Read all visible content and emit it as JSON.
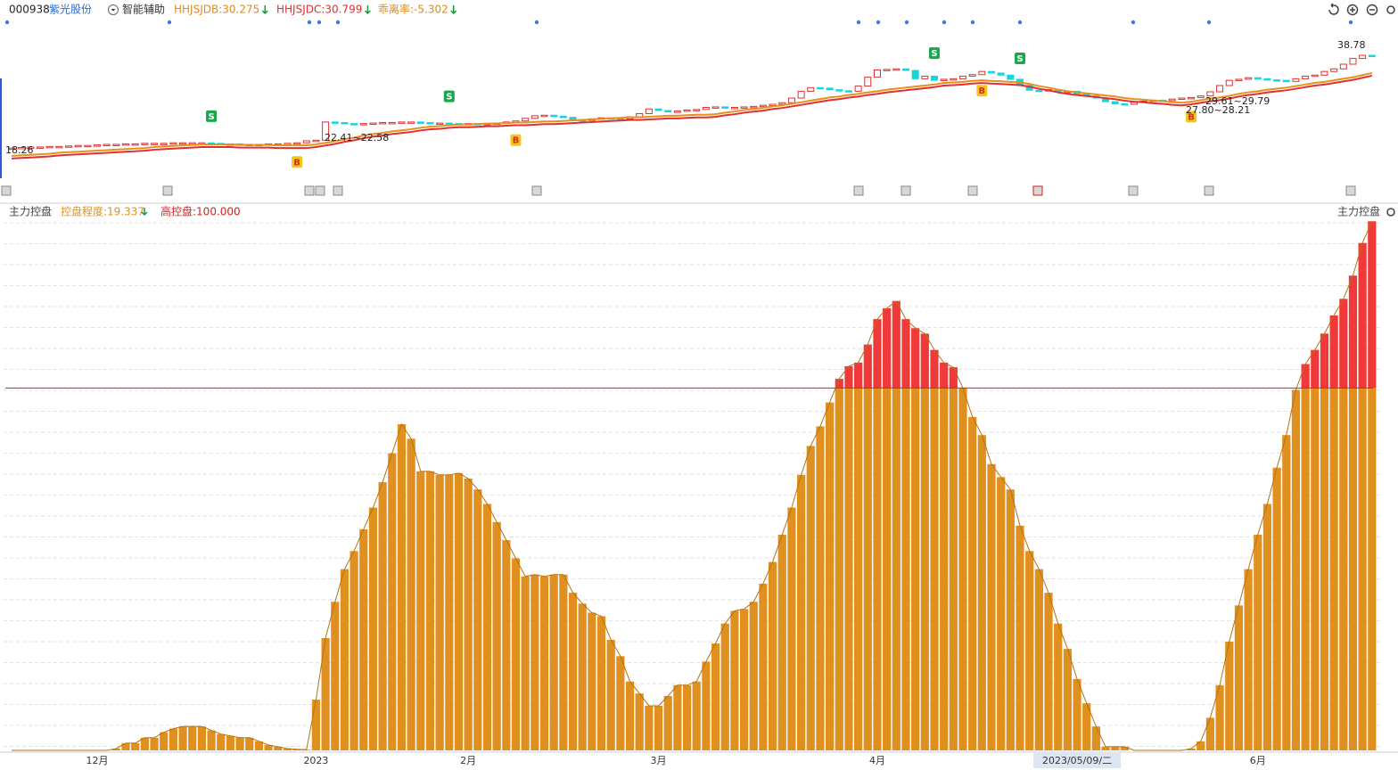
{
  "header": {
    "code": "000938",
    "name": "紫光股份",
    "assist": "智能辅助",
    "indicators": [
      {
        "label": "HHJSJDB:30.275",
        "color": "#e08a1a"
      },
      {
        "label": "HHJSJDC:30.799",
        "color": "#e03030"
      },
      {
        "label": "乖离率:-5.302",
        "color": "#e08a1a"
      }
    ]
  },
  "panel2_header": {
    "title": "主力控盘",
    "degree": "控盘程度:19.337",
    "title_right": "主力控盘"
  },
  "chart_data": [
    {
      "type": "candlestick",
      "ylim": [
        12.8,
        43.6
      ],
      "close": [
        18.6,
        18.7,
        18.8,
        18.8,
        18.9,
        18.9,
        19.0,
        19.1,
        19.1,
        19.2,
        19.3,
        19.3,
        19.4,
        19.4,
        19.5,
        19.5,
        19.5,
        19.6,
        19.6,
        19.6,
        19.6,
        19.5,
        19.4,
        19.4,
        19.3,
        19.3,
        19.3,
        19.4,
        19.4,
        19.5,
        19.6,
        20.0,
        20.1,
        23.6,
        23.5,
        23.3,
        23.2,
        23.3,
        23.4,
        23.5,
        23.5,
        23.6,
        23.6,
        23.5,
        23.4,
        23.4,
        23.3,
        23.2,
        23.3,
        23.2,
        23.3,
        23.4,
        23.6,
        23.8,
        24.3,
        24.8,
        24.9,
        24.7,
        24.5,
        24.0,
        23.9,
        24.2,
        24.4,
        24.3,
        24.2,
        24.6,
        25.2,
        26.1,
        25.8,
        25.6,
        25.7,
        25.9,
        26.0,
        26.4,
        26.5,
        26.3,
        26.4,
        26.5,
        26.6,
        26.8,
        27.0,
        27.3,
        28.2,
        29.5,
        30.2,
        30.1,
        29.8,
        29.6,
        29.5,
        30.5,
        32.2,
        33.6,
        33.7,
        33.8,
        33.5,
        31.9,
        32.4,
        31.6,
        31.8,
        31.9,
        32.4,
        32.7,
        33.3,
        33.0,
        32.6,
        31.8,
        30.6,
        29.7,
        29.6,
        29.8,
        29.3,
        29.5,
        29.0,
        28.6,
        28.2,
        27.5,
        27.1,
        27.0,
        27.4,
        27.6,
        27.8,
        27.7,
        28.0,
        28.2,
        28.3,
        28.6,
        29.4,
        30.6,
        31.6,
        31.8,
        32.1,
        31.9,
        31.7,
        31.6,
        31.4,
        31.9,
        32.4,
        32.6,
        33.3,
        33.8,
        34.7,
        35.8,
        36.4,
        36.2
      ],
      "line": {
        "color": "#e8901c",
        "values": [
          17.1,
          17.2,
          17.3,
          17.4,
          17.5,
          17.7,
          17.8,
          17.9,
          18.0,
          18.1,
          18.2,
          18.3,
          18.4,
          18.5,
          18.6,
          18.8,
          18.9,
          19.0,
          19.1,
          19.2,
          19.3,
          19.3,
          19.3,
          19.3,
          19.2,
          19.2,
          19.2,
          19.2,
          19.1,
          19.1,
          19.1,
          19.1,
          19.3,
          19.6,
          19.9,
          20.3,
          20.6,
          21.0,
          21.3,
          21.5,
          21.8,
          22.0,
          22.2,
          22.5,
          22.7,
          22.8,
          23.0,
          23.1,
          23.1,
          23.2,
          23.3,
          23.3,
          23.4,
          23.5,
          23.5,
          23.6,
          23.7,
          23.7,
          23.8,
          23.9,
          24.0,
          24.1,
          24.2,
          24.3,
          24.4,
          24.5,
          24.5,
          24.6,
          24.7,
          24.8,
          24.8,
          24.9,
          25.0,
          25.0,
          25.1,
          25.4,
          25.6,
          25.9,
          26.1,
          26.3,
          26.6,
          26.8,
          27.1,
          27.4,
          27.7,
          28.0,
          28.3,
          28.5,
          28.8,
          29.0,
          29.3,
          29.5,
          29.8,
          30.0,
          30.2,
          30.4,
          30.6,
          30.8,
          31.1,
          31.2,
          31.3,
          31.5,
          31.6,
          31.5,
          31.4,
          31.3,
          31.2,
          30.9,
          30.5,
          30.2,
          29.8,
          29.5,
          29.3,
          29.1,
          28.9,
          28.7,
          28.5,
          28.2,
          28.0,
          27.9,
          27.7,
          27.6,
          27.4,
          27.3,
          27.5,
          27.8,
          28.1,
          28.3,
          28.6,
          29.0,
          29.3,
          29.5,
          29.8,
          30.0,
          30.2,
          30.5,
          30.8,
          31.1,
          31.3,
          31.6,
          31.9,
          32.2,
          32.6,
          33.0
        ]
      },
      "signals": [
        null,
        null,
        null,
        null,
        null,
        null,
        null,
        null,
        null,
        null,
        null,
        null,
        null,
        null,
        null,
        null,
        null,
        null,
        null,
        null,
        null,
        "S",
        null,
        null,
        null,
        null,
        null,
        null,
        null,
        null,
        "B",
        null,
        null,
        null,
        null,
        null,
        null,
        null,
        null,
        null,
        null,
        null,
        null,
        null,
        null,
        null,
        "S",
        null,
        null,
        null,
        null,
        null,
        null,
        "B",
        null,
        null,
        null,
        null,
        null,
        null,
        null,
        null,
        null,
        null,
        null,
        null,
        null,
        null,
        null,
        null,
        null,
        null,
        null,
        null,
        null,
        null,
        null,
        null,
        null,
        null,
        null,
        null,
        null,
        null,
        null,
        null,
        null,
        null,
        null,
        null,
        null,
        null,
        null,
        null,
        null,
        null,
        null,
        "S",
        null,
        null,
        null,
        null,
        "B",
        null,
        null,
        null,
        "S",
        null,
        null,
        null,
        null,
        null,
        null,
        null,
        null,
        null,
        null,
        null,
        null,
        null,
        null,
        null,
        null,
        null,
        "B",
        null,
        null,
        null,
        null,
        null,
        null,
        null,
        null,
        null,
        null,
        null,
        null,
        null,
        null,
        null,
        null,
        null,
        null,
        null
      ],
      "annotations": [
        "18.26",
        "22.41~22.58",
        "27.80~28.21",
        "29.61~29.79",
        "38.78"
      ]
    },
    {
      "type": "bar",
      "ylim": [
        0,
        150
      ],
      "color": "#e0901e",
      "above_color": "#f03a3a",
      "threshold": {
        "value": 100,
        "label": "高控盘:100.000",
        "color": "#d42020"
      },
      "categories": [
        null,
        null,
        null,
        null,
        null,
        null,
        null,
        null,
        null,
        "12月",
        null,
        null,
        null,
        null,
        null,
        null,
        null,
        null,
        null,
        null,
        null,
        null,
        null,
        null,
        null,
        null,
        null,
        null,
        null,
        null,
        null,
        null,
        "2023",
        null,
        null,
        null,
        null,
        null,
        null,
        null,
        null,
        null,
        null,
        null,
        null,
        null,
        null,
        null,
        "2月",
        null,
        null,
        null,
        null,
        null,
        null,
        null,
        null,
        null,
        null,
        null,
        null,
        null,
        null,
        null,
        null,
        null,
        null,
        null,
        "3月",
        null,
        null,
        null,
        null,
        null,
        null,
        null,
        null,
        null,
        null,
        null,
        null,
        null,
        null,
        null,
        null,
        null,
        null,
        null,
        null,
        null,
        null,
        "4月",
        null,
        null,
        null,
        null,
        null,
        null,
        null,
        null,
        null,
        null,
        null,
        null,
        null,
        null,
        null,
        null,
        null,
        null,
        null,
        null,
        "2023/05/09/二",
        null,
        null,
        null,
        null,
        null,
        null,
        null,
        null,
        null,
        null,
        null,
        null,
        null,
        null,
        null,
        null,
        null,
        null,
        "6月",
        null,
        null,
        null,
        null,
        null,
        null,
        null,
        null,
        null,
        null,
        null,
        null
      ],
      "values": [
        0,
        0,
        0,
        0,
        0,
        0,
        0,
        0,
        0,
        0,
        0,
        0.5,
        2,
        2,
        3.5,
        3.5,
        5,
        6,
        6.6,
        6.6,
        6.6,
        5.5,
        4.5,
        4,
        3.5,
        3.5,
        2.5,
        1.5,
        1,
        0.5,
        0.3,
        0.2,
        14,
        31,
        41,
        50,
        55,
        61,
        67,
        74,
        82,
        90,
        86,
        77,
        77,
        76,
        76,
        76.5,
        75,
        72,
        68,
        63,
        58,
        53,
        48,
        48.5,
        48,
        48.5,
        48.5,
        43.5,
        40.5,
        38,
        37,
        30.5,
        26,
        19,
        15.7,
        12.3,
        12.3,
        15,
        18,
        18,
        19,
        24.5,
        29.5,
        35,
        38.5,
        39,
        41,
        46,
        52,
        59.5,
        67,
        76,
        84,
        89.4,
        96,
        102.5,
        106,
        107,
        112,
        119,
        122,
        124,
        119,
        116.5,
        115,
        110.5,
        107,
        105.7,
        100,
        92,
        87,
        79,
        75.4,
        72,
        62,
        55,
        50,
        43.5,
        35,
        28,
        19.7,
        13,
        6.6,
        1,
        1,
        1,
        0,
        0,
        0,
        0,
        0,
        0,
        0.5,
        2.5,
        9,
        18,
        30,
        40,
        50,
        59.5,
        68,
        78,
        87,
        99.5,
        106.6,
        110.5,
        115,
        120,
        124.6,
        131,
        140,
        146
      ]
    }
  ]
}
